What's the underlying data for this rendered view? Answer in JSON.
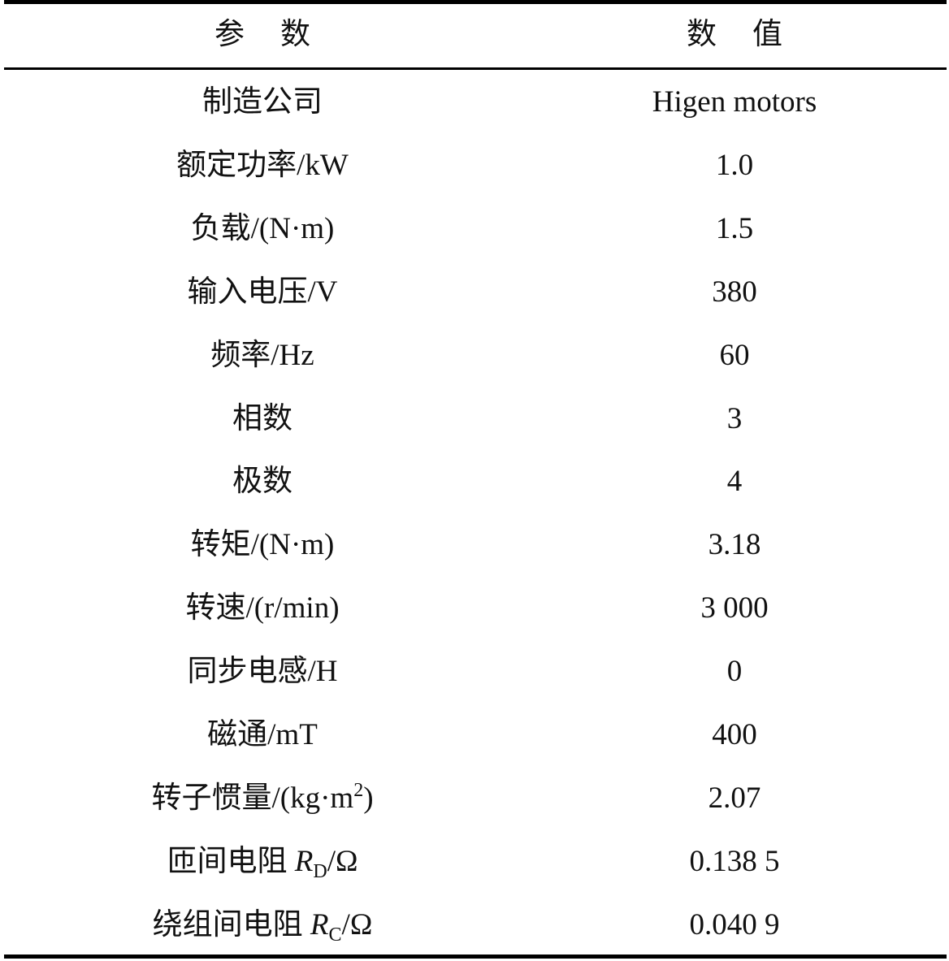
{
  "header": {
    "param_chars": [
      "参",
      "数"
    ],
    "value_chars": [
      "数",
      "值"
    ]
  },
  "rows": [
    {
      "label": [
        {
          "t": "制造公司"
        }
      ],
      "value": "Higen motors"
    },
    {
      "label": [
        {
          "t": "额定功率/kW"
        }
      ],
      "value": "1.0"
    },
    {
      "label": [
        {
          "t": "负载/(N·m)"
        }
      ],
      "value": "1.5"
    },
    {
      "label": [
        {
          "t": "输入电压/V"
        }
      ],
      "value": "380"
    },
    {
      "label": [
        {
          "t": "频率/Hz"
        }
      ],
      "value": "60"
    },
    {
      "label": [
        {
          "t": "相数"
        }
      ],
      "value": "3"
    },
    {
      "label": [
        {
          "t": "极数"
        }
      ],
      "value": "4"
    },
    {
      "label": [
        {
          "t": "转矩/(N·m)"
        }
      ],
      "value": "3.18"
    },
    {
      "label": [
        {
          "t": "转速/(r/min)"
        }
      ],
      "value": "3 000"
    },
    {
      "label": [
        {
          "t": "同步电感/H"
        }
      ],
      "value": "0"
    },
    {
      "label": [
        {
          "t": "磁通/mT"
        }
      ],
      "value": "400"
    },
    {
      "label": [
        {
          "t": "转子惯量/(kg·m"
        },
        {
          "t": "2",
          "s": "sup"
        },
        {
          "t": ")"
        }
      ],
      "value": "2.07"
    },
    {
      "label": [
        {
          "t": "匝间电阻 "
        },
        {
          "t": "R",
          "s": "i"
        },
        {
          "t": "D",
          "s": "sub"
        },
        {
          "t": "/Ω"
        }
      ],
      "value": "0.138 5"
    },
    {
      "label": [
        {
          "t": "绕组间电阻 "
        },
        {
          "t": "R",
          "s": "i"
        },
        {
          "t": "C",
          "s": "sub"
        },
        {
          "t": "/Ω"
        }
      ],
      "value": "0.040 9"
    }
  ]
}
